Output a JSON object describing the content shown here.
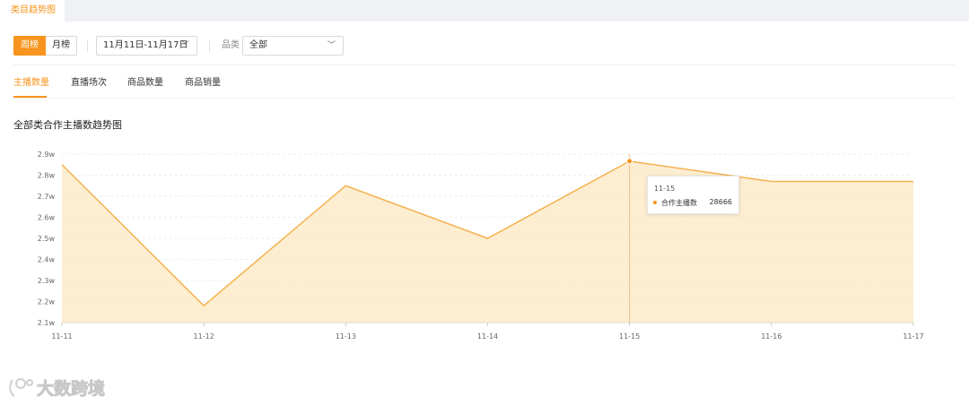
{
  "top_tab": {
    "label": "类目趋势图"
  },
  "filters": {
    "period_week": "周榜",
    "period_month": "月榜",
    "date_range": "11月11日-11月17日",
    "category_label": "品类",
    "category_value": "全部"
  },
  "metric_tabs": [
    "主播数量",
    "直播场次",
    "商品数量",
    "商品销量"
  ],
  "active_metric_index": 0,
  "chart_title": "全部类合作主播数趋势图",
  "tooltip": {
    "date": "11-15",
    "series": "合作主播数",
    "value": "28666"
  },
  "watermark": {
    "text": "大数跨境"
  },
  "chart_data": {
    "type": "area",
    "title": "全部类合作主播数趋势图",
    "categories": [
      "11-11",
      "11-12",
      "11-13",
      "11-14",
      "11-15",
      "11-16",
      "11-17"
    ],
    "series": [
      {
        "name": "合作主播数",
        "values": [
          28500,
          21800,
          27500,
          25000,
          28666,
          27700,
          27700
        ]
      }
    ],
    "y_ticks": [
      "2.1w",
      "2.2w",
      "2.3w",
      "2.4w",
      "2.5w",
      "2.6w",
      "2.7w",
      "2.8w",
      "2.9w"
    ],
    "ylim": [
      21000,
      29000
    ],
    "grid": true,
    "highlight_category": "11-15",
    "colors": {
      "line": "#f5b14f",
      "fill": "#fdebc9",
      "accent": "#f7941d"
    }
  }
}
